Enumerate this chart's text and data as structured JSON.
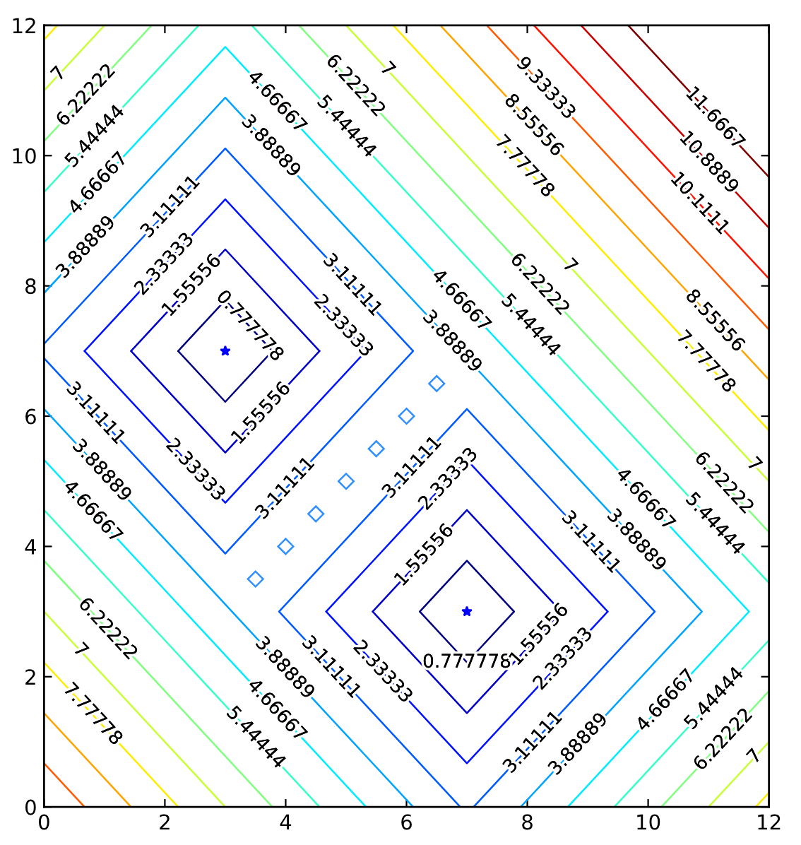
{
  "chart_data": {
    "type": "line",
    "xlim": [
      0,
      12
    ],
    "ylim": [
      0,
      12
    ],
    "xticks": [
      0,
      2,
      4,
      6,
      8,
      10,
      12
    ],
    "yticks": [
      0,
      2,
      4,
      6,
      8,
      10,
      12
    ],
    "grid": false,
    "legend": false,
    "marker": "none",
    "line_style": "solid",
    "series": [
      {
        "color": "#000080",
        "x": [
          2.22,
          3,
          3.78
        ],
        "values": [
          7,
          7.78,
          7
        ]
      },
      {
        "color": "#000080",
        "x": [
          3.78,
          3,
          2.22
        ],
        "values": [
          7,
          6.22,
          7
        ]
      },
      {
        "color": "#000080",
        "x": [
          6.22,
          7,
          7.78
        ],
        "values": [
          3,
          3.78,
          3
        ]
      },
      {
        "color": "#000080",
        "x": [
          7.78,
          7,
          6.22
        ],
        "values": [
          3,
          2.22,
          3
        ]
      },
      {
        "color": "#0000c8",
        "x": [
          1.44,
          3,
          4.56
        ],
        "values": [
          7,
          8.56,
          7
        ]
      },
      {
        "color": "#0000c8",
        "x": [
          4.56,
          3,
          1.44
        ],
        "values": [
          7,
          5.44,
          7
        ]
      },
      {
        "color": "#0000c8",
        "x": [
          5.44,
          7,
          8.56
        ],
        "values": [
          3,
          4.56,
          3
        ]
      },
      {
        "color": "#0000c8",
        "x": [
          8.56,
          7,
          5.44
        ],
        "values": [
          3,
          1.44,
          3
        ]
      },
      {
        "color": "#0012ff",
        "x": [
          0.67,
          3,
          5.33
        ],
        "values": [
          7,
          9.33,
          7
        ]
      },
      {
        "color": "#0012ff",
        "x": [
          5.33,
          3,
          0.67
        ],
        "values": [
          7,
          4.67,
          7
        ]
      },
      {
        "color": "#0012ff",
        "x": [
          4.67,
          7,
          9.33
        ],
        "values": [
          3,
          5.33,
          3
        ]
      },
      {
        "color": "#0012ff",
        "x": [
          9.33,
          7,
          4.67
        ],
        "values": [
          3,
          0.67,
          3
        ]
      },
      {
        "color": "#005bff",
        "x": [
          0,
          3,
          6.11,
          3,
          0
        ],
        "values": [
          7.11,
          10.11,
          7,
          3.89,
          6.89
        ]
      },
      {
        "color": "#005bff",
        "x": [
          7.11,
          10.11,
          7,
          3.89,
          6.89
        ],
        "values": [
          0,
          3,
          6.11,
          3,
          0
        ]
      },
      {
        "color": "#00a4ff",
        "x": [
          0,
          3,
          10.89,
          7.89
        ],
        "values": [
          7.89,
          10.89,
          3,
          0
        ]
      },
      {
        "color": "#00a4ff",
        "x": [
          0,
          6.11
        ],
        "values": [
          6.11,
          0
        ]
      },
      {
        "color": "#00edff",
        "x": [
          0,
          3,
          11.67,
          8.67
        ],
        "values": [
          8.67,
          11.67,
          3,
          0
        ]
      },
      {
        "color": "#00edff",
        "x": [
          0,
          5.33
        ],
        "values": [
          5.33,
          0
        ]
      },
      {
        "color": "#37ffc8",
        "x": [
          0,
          2.56
        ],
        "values": [
          9.44,
          12
        ]
      },
      {
        "color": "#37ffc8",
        "x": [
          3.44,
          12
        ],
        "values": [
          12,
          3.44
        ]
      },
      {
        "color": "#37ffc8",
        "x": [
          9.44,
          12
        ],
        "values": [
          0,
          2.56
        ]
      },
      {
        "color": "#37ffc8",
        "x": [
          0,
          4.56
        ],
        "values": [
          4.56,
          0
        ]
      },
      {
        "color": "#80ff80",
        "x": [
          0,
          1.78
        ],
        "values": [
          10.22,
          12
        ]
      },
      {
        "color": "#80ff80",
        "x": [
          4.22,
          12
        ],
        "values": [
          12,
          4.22
        ]
      },
      {
        "color": "#80ff80",
        "x": [
          10.22,
          12
        ],
        "values": [
          0,
          1.78
        ]
      },
      {
        "color": "#80ff80",
        "x": [
          0,
          3.78
        ],
        "values": [
          3.78,
          0
        ]
      },
      {
        "color": "#c8ff37",
        "x": [
          0,
          1
        ],
        "values": [
          11,
          12
        ]
      },
      {
        "color": "#c8ff37",
        "x": [
          5,
          12
        ],
        "values": [
          12,
          5
        ]
      },
      {
        "color": "#c8ff37",
        "x": [
          11,
          12
        ],
        "values": [
          0,
          1
        ]
      },
      {
        "color": "#c8ff37",
        "x": [
          0,
          3
        ],
        "values": [
          3,
          0
        ]
      },
      {
        "color": "#ffed00",
        "x": [
          0,
          0.22
        ],
        "values": [
          11.78,
          12
        ]
      },
      {
        "color": "#ffed00",
        "x": [
          5.78,
          12
        ],
        "values": [
          12,
          5.78
        ]
      },
      {
        "color": "#ffed00",
        "x": [
          11.78,
          12
        ],
        "values": [
          0,
          0.22
        ]
      },
      {
        "color": "#ffed00",
        "x": [
          0,
          2.22
        ],
        "values": [
          2.22,
          0
        ]
      },
      {
        "color": "#ffa400",
        "x": [
          6.56,
          12
        ],
        "values": [
          12,
          6.56
        ]
      },
      {
        "color": "#ffa400",
        "x": [
          0,
          1.44
        ],
        "values": [
          1.44,
          0
        ]
      },
      {
        "color": "#ff5b00",
        "x": [
          7.33,
          12
        ],
        "values": [
          12,
          7.33
        ]
      },
      {
        "color": "#ff5b00",
        "x": [
          0,
          0.67
        ],
        "values": [
          0.67,
          0
        ]
      },
      {
        "color": "#ff1200",
        "x": [
          8.11,
          12
        ],
        "values": [
          12,
          8.11
        ]
      },
      {
        "color": "#c80000",
        "x": [
          8.89,
          12
        ],
        "values": [
          12,
          8.89
        ]
      },
      {
        "color": "#800000",
        "x": [
          9.67,
          12
        ],
        "values": [
          12,
          9.67
        ]
      },
      {
        "type": "scatter",
        "marker": "star",
        "color": "#0000ff",
        "x": [
          3,
          7
        ],
        "values": [
          7,
          3
        ]
      },
      {
        "type": "scatter",
        "marker": "diamond",
        "color": "#2f8fff",
        "x": [
          3.5,
          4,
          4.5,
          5,
          5.5,
          6,
          6.5
        ],
        "values": [
          3.5,
          4,
          4.5,
          5,
          5.5,
          6,
          6.5
        ]
      }
    ],
    "annotations": [
      {
        "text": "7",
        "x": 0.25,
        "y": 11.25
      },
      {
        "text": "6.22222",
        "x": 0.7,
        "y": 10.92
      },
      {
        "text": "5.44444",
        "x": 0.85,
        "y": 10.29
      },
      {
        "text": "4.66667",
        "x": 0.9,
        "y": 9.57
      },
      {
        "text": "3.88889",
        "x": 0.7,
        "y": 8.59
      },
      {
        "text": "3.11111",
        "x": 2.1,
        "y": 9.21
      },
      {
        "text": "2.33333",
        "x": 2.0,
        "y": 8.33
      },
      {
        "text": "1.55556",
        "x": 2.45,
        "y": 8.0
      },
      {
        "text": "0.777778",
        "x": 3.4,
        "y": 7.38
      },
      {
        "text": "4.66667",
        "x": 3.85,
        "y": 10.82
      },
      {
        "text": "3.88889",
        "x": 3.75,
        "y": 10.14
      },
      {
        "text": "3.11111",
        "x": 5.1,
        "y": 8.01
      },
      {
        "text": "2.33333",
        "x": 4.95,
        "y": 7.38
      },
      {
        "text": "6.22222",
        "x": 5.15,
        "y": 11.07
      },
      {
        "text": "7",
        "x": 5.68,
        "y": 11.32
      },
      {
        "text": "5.44444",
        "x": 5.0,
        "y": 10.44
      },
      {
        "text": "3.11111",
        "x": 0.85,
        "y": 6.04
      },
      {
        "text": "1.55556",
        "x": 3.6,
        "y": 6.04
      },
      {
        "text": "9.33333",
        "x": 8.3,
        "y": 11.03
      },
      {
        "text": "8.55556",
        "x": 8.1,
        "y": 10.46
      },
      {
        "text": "7.77778",
        "x": 7.95,
        "y": 9.83
      },
      {
        "text": "11.6667",
        "x": 11.1,
        "y": 10.57
      },
      {
        "text": "10.8889",
        "x": 11.0,
        "y": 9.89
      },
      {
        "text": "10.1111",
        "x": 10.85,
        "y": 9.26
      },
      {
        "text": "7",
        "x": 8.7,
        "y": 8.3
      },
      {
        "text": "6.22222",
        "x": 8.2,
        "y": 8.02
      },
      {
        "text": "5.44444",
        "x": 8.05,
        "y": 7.39
      },
      {
        "text": "4.66667",
        "x": 6.9,
        "y": 7.77
      },
      {
        "text": "3.88889",
        "x": 6.75,
        "y": 7.14
      },
      {
        "text": "8.55556",
        "x": 11.1,
        "y": 7.46
      },
      {
        "text": "7.77778",
        "x": 10.95,
        "y": 6.83
      },
      {
        "text": "3.88889",
        "x": 0.95,
        "y": 5.16
      },
      {
        "text": "4.66667",
        "x": 0.8,
        "y": 4.53
      },
      {
        "text": "2.33333",
        "x": 2.5,
        "y": 5.17
      },
      {
        "text": "3.11111",
        "x": 4.0,
        "y": 4.89
      },
      {
        "text": "6.22222",
        "x": 1.05,
        "y": 2.73
      },
      {
        "text": "7",
        "x": 0.6,
        "y": 2.4
      },
      {
        "text": "7.77778",
        "x": 0.8,
        "y": 1.42
      },
      {
        "text": "3.88889",
        "x": 3.98,
        "y": 2.13
      },
      {
        "text": "3.11111",
        "x": 4.75,
        "y": 2.14
      },
      {
        "text": "2.33333",
        "x": 5.6,
        "y": 2.07
      },
      {
        "text": "4.66667",
        "x": 3.85,
        "y": 1.48
      },
      {
        "text": "5.44444",
        "x": 3.5,
        "y": 1.06
      },
      {
        "text": "3.11111",
        "x": 6.1,
        "y": 5.21
      },
      {
        "text": "1.55556",
        "x": 6.3,
        "y": 3.86
      },
      {
        "text": "2.33333",
        "x": 6.7,
        "y": 5.03
      },
      {
        "text": "3.11111",
        "x": 9.05,
        "y": 4.06
      },
      {
        "text": "3.88889",
        "x": 9.8,
        "y": 4.09
      },
      {
        "text": "4.66667",
        "x": 9.95,
        "y": 4.72
      },
      {
        "text": "5.44444",
        "x": 11.1,
        "y": 4.34
      },
      {
        "text": "6.22222",
        "x": 11.25,
        "y": 4.97
      },
      {
        "text": "7",
        "x": 11.75,
        "y": 5.25
      },
      {
        "text": "0.777778",
        "x": 7,
        "y": 2.22
      },
      {
        "text": "1.55556",
        "x": 8.2,
        "y": 2.64
      },
      {
        "text": "2.33333",
        "x": 8.6,
        "y": 2.27
      },
      {
        "text": "3.11111",
        "x": 8.1,
        "y": 0.99
      },
      {
        "text": "3.88889",
        "x": 8.85,
        "y": 0.96
      },
      {
        "text": "4.66667",
        "x": 10.3,
        "y": 1.63
      },
      {
        "text": "5.44444",
        "x": 11.1,
        "y": 1.66
      },
      {
        "text": "6.22222",
        "x": 11.25,
        "y": 1.03
      },
      {
        "text": "7",
        "x": 11.77,
        "y": 0.77
      }
    ]
  }
}
